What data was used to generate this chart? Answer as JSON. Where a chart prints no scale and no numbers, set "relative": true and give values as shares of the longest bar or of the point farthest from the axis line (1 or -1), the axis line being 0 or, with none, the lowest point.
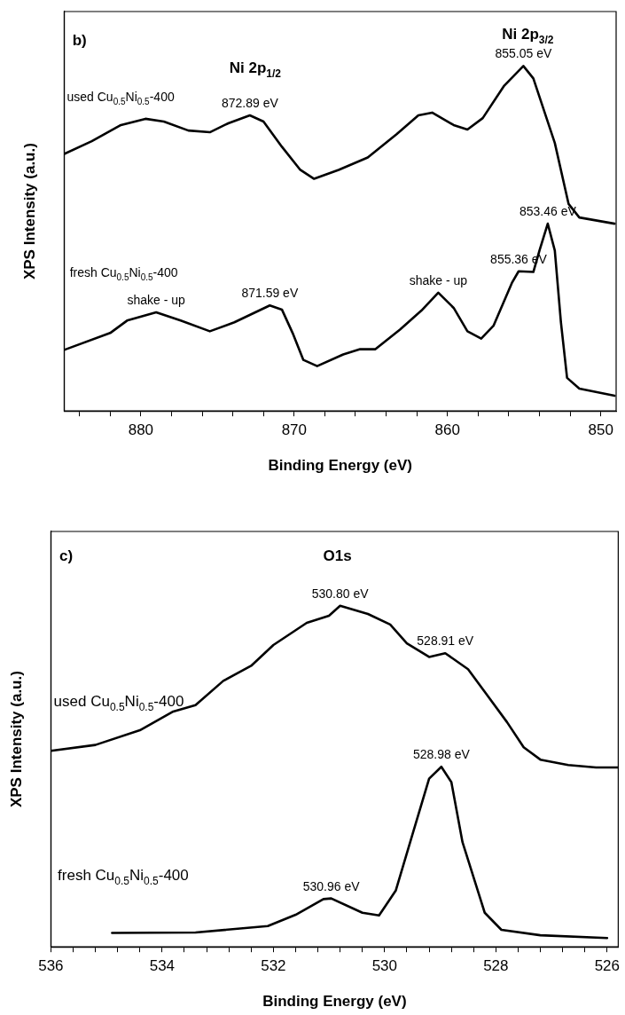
{
  "chart_data": [
    {
      "type": "line",
      "title": "b)",
      "xlabel": "Binding Energy (eV)",
      "ylabel": "XPS Intensity (a.u.)",
      "relative": true,
      "tick_labels": "x",
      "marker": "none",
      "line_style": "solid",
      "legend": false,
      "xlim": [
        885,
        849
      ],
      "xticks": [
        {
          "value": 884,
          "label": null
        },
        {
          "value": 882,
          "label": null
        },
        880,
        {
          "value": 878,
          "label": null
        },
        {
          "value": 876,
          "label": null
        },
        {
          "value": 874,
          "label": null
        },
        {
          "value": 872,
          "label": null
        },
        870,
        {
          "value": 868,
          "label": null
        },
        {
          "value": 866,
          "label": null
        },
        {
          "value": 864,
          "label": null
        },
        {
          "value": 862,
          "label": null
        },
        860,
        {
          "value": 858,
          "label": null
        },
        {
          "value": 856,
          "label": null
        },
        {
          "value": 854,
          "label": null
        },
        {
          "value": 852,
          "label": null
        },
        850
      ],
      "series": [
        {
          "name": "used Cu$_{0.5}$Ni$_{0.5}$-400",
          "color": "#000000",
          "x": [
            885,
            883.2,
            881.3,
            879.7,
            878.5,
            876.9,
            875.5,
            874.3,
            872.89,
            872.0,
            870.8,
            869.6,
            868.7,
            867.1,
            865.2,
            863.3,
            861.9,
            861.0,
            859.6,
            858.7,
            857.7,
            856.3,
            855.05,
            854.4,
            853.0,
            852.1,
            851.4,
            849.1
          ],
          "values": [
            0.745,
            0.782,
            0.829,
            0.847,
            0.839,
            0.813,
            0.808,
            0.834,
            0.857,
            0.839,
            0.766,
            0.699,
            0.673,
            0.699,
            0.735,
            0.803,
            0.857,
            0.865,
            0.829,
            0.816,
            0.849,
            0.943,
            1,
            0.964,
            0.777,
            0.6,
            0.561,
            0.543
          ]
        },
        {
          "name": "fresh Cu$_{0.5}$Ni$_{0.5}$-400",
          "color": "#000000",
          "x": [
            885,
            882.0,
            880.9,
            879.0,
            877.4,
            875.5,
            873.9,
            871.59,
            870.8,
            870.1,
            869.4,
            868.5,
            866.8,
            865.7,
            864.7,
            863.1,
            861.7,
            860.6,
            859.6,
            858.7,
            857.8,
            857.0,
            855.8,
            855.36,
            854.4,
            854.0,
            853.46,
            853.0,
            852.6,
            852.2,
            851.4,
            849.1
          ],
          "values": [
            0.177,
            0.226,
            0.262,
            0.286,
            0.262,
            0.231,
            0.257,
            0.306,
            0.294,
            0.226,
            0.148,
            0.13,
            0.164,
            0.179,
            0.179,
            0.236,
            0.291,
            0.343,
            0.299,
            0.231,
            0.21,
            0.247,
            0.371,
            0.405,
            0.403,
            0.465,
            0.543,
            0.465,
            0.257,
            0.096,
            0.065,
            0.044
          ]
        }
      ],
      "annotations": [
        "Ni 2p$_{1/2}$",
        "Ni 2p$_{3/2}$",
        {
          "text": "872.89 eV",
          "x": 872.89,
          "y": 0.857
        },
        {
          "text": "855.05 eV",
          "x": 855.05,
          "y": 1
        },
        {
          "text": "853.46 eV",
          "x": 853.46,
          "y": 0.543
        },
        {
          "text": "855.36 eV",
          "x": 855.36,
          "y": 0.405
        },
        {
          "text": "871.59 eV",
          "x": 871.59,
          "y": 0.306
        },
        {
          "text": "shake - up",
          "x": 879.0,
          "y": 0.286
        },
        {
          "text": "shake - up",
          "x": 860.6,
          "y": 0.343
        }
      ]
    },
    {
      "type": "line",
      "title": "c)",
      "subtitle": "O1s",
      "xlabel": "Binding Energy (eV)",
      "ylabel": "XPS Intensity (a.u.)",
      "relative": true,
      "tick_labels": "x",
      "marker": "none",
      "line_style": "solid",
      "legend": false,
      "xlim": [
        536,
        525.8
      ],
      "xticks": [
        536,
        {
          "value": 535.6,
          "label": null
        },
        {
          "value": 535.2,
          "label": null
        },
        {
          "value": 534.8,
          "label": null
        },
        {
          "value": 534.4,
          "label": null
        },
        534,
        {
          "value": 533.6,
          "label": null
        },
        {
          "value": 533.2,
          "label": null
        },
        {
          "value": 532.8,
          "label": null
        },
        {
          "value": 532.4,
          "label": null
        },
        532,
        {
          "value": 531.6,
          "label": null
        },
        {
          "value": 531.2,
          "label": null
        },
        {
          "value": 530.8,
          "label": null
        },
        {
          "value": 530.4,
          "label": null
        },
        530,
        {
          "value": 529.6,
          "label": null
        },
        {
          "value": 529.2,
          "label": null
        },
        {
          "value": 528.8,
          "label": null
        },
        {
          "value": 528.4,
          "label": null
        },
        528,
        {
          "value": 527.6,
          "label": null
        },
        {
          "value": 527.2,
          "label": null
        },
        {
          "value": 526.8,
          "label": null
        },
        {
          "value": 526.4,
          "label": null
        },
        526
      ],
      "series": [
        {
          "name": "used Cu$_{0.5}$Ni$_{0.5}$-400",
          "color": "#000000",
          "x": [
            536.0,
            535.2,
            534.4,
            533.8,
            533.4,
            532.9,
            532.4,
            532.0,
            531.4,
            531.0,
            530.8,
            530.3,
            529.9,
            529.6,
            529.2,
            528.91,
            528.5,
            528.2,
            527.8,
            527.5,
            527.2,
            526.7,
            526.2,
            525.8
          ],
          "values": [
            0.575,
            0.592,
            0.635,
            0.69,
            0.709,
            0.78,
            0.824,
            0.885,
            0.95,
            0.971,
            1,
            0.976,
            0.945,
            0.89,
            0.85,
            0.861,
            0.814,
            0.748,
            0.659,
            0.585,
            0.549,
            0.533,
            0.526,
            0.526
          ]
        },
        {
          "name": "fresh Cu$_{0.5}$Ni$_{0.5}$-400",
          "color": "#000000",
          "x": [
            534.9,
            533.4,
            532.1,
            531.6,
            531.1,
            530.96,
            530.4,
            530.1,
            529.8,
            529.5,
            529.2,
            528.98,
            528.8,
            528.6,
            528.2,
            527.9,
            527.2,
            526.0
          ],
          "values": [
            0.041,
            0.042,
            0.061,
            0.094,
            0.14,
            0.142,
            0.1,
            0.092,
            0.165,
            0.329,
            0.493,
            0.528,
            0.483,
            0.307,
            0.1,
            0.05,
            0.034,
            0.026
          ]
        }
      ],
      "annotations": [
        {
          "text": "530.80 eV",
          "x": 530.8,
          "y": 1
        },
        {
          "text": "528.91 eV",
          "x": 528.91,
          "y": 0.861
        },
        {
          "text": "528.98 eV",
          "x": 528.98,
          "y": 0.528
        },
        {
          "text": "530.96 eV",
          "x": 530.96,
          "y": 0.142
        }
      ]
    }
  ]
}
